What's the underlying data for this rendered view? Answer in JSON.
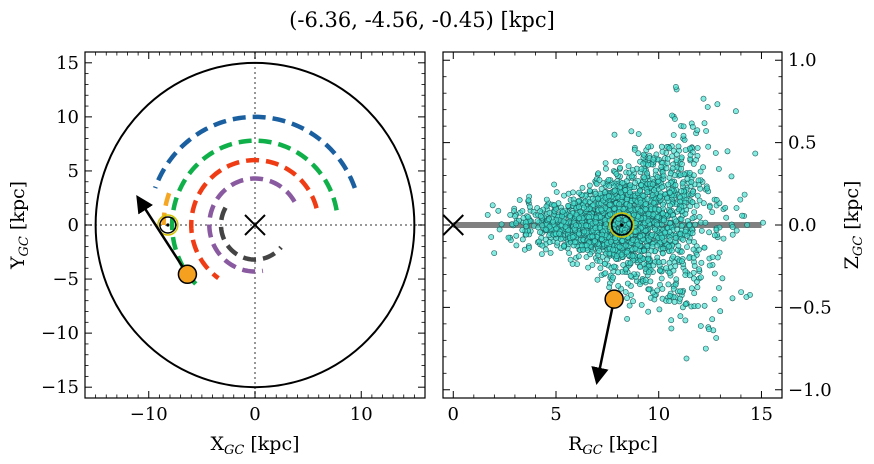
{
  "figure": {
    "title": "(-6.36, -4.56, -0.45) [kpc]",
    "left_xlabel": "X",
    "left_xlabel_sub": "GC",
    "left_xlabel_unit": " [kpc]",
    "left_ylabel": "Y",
    "left_ylabel_sub": "GC",
    "left_ylabel_unit": " [kpc]",
    "right_xlabel": "R",
    "right_xlabel_sub": "GC",
    "right_xlabel_unit": " [kpc]",
    "right_ylabel": "Z",
    "right_ylabel_sub": "GC",
    "right_ylabel_unit": " [kpc]"
  },
  "colors": {
    "arm_blue": "#1a5fa0",
    "arm_green": "#0fb04a",
    "arm_red": "#f03c14",
    "arm_purple": "#8a5aa0",
    "arm_gray": "#444444",
    "arm_orange": "#f5a623",
    "star": "#f5a01e",
    "cluster_fill": "#40e0d0",
    "sun_ring": "#d4c000",
    "disk_line": "#808080"
  },
  "chart_data": [
    {
      "type": "scatter",
      "panel": "left",
      "xlabel": "X_GC [kpc]",
      "ylabel": "Y_GC [kpc]",
      "xlim": [
        -16,
        16
      ],
      "ylim": [
        -16,
        16
      ],
      "xticks": [
        -10,
        0,
        10
      ],
      "yticks": [
        -15,
        -10,
        -5,
        0,
        5,
        10,
        15
      ],
      "xtick_labels": [
        "−10",
        "0",
        "10"
      ],
      "ytick_labels": [
        "−15",
        "−10",
        "−5",
        "0",
        "5",
        "10",
        "15"
      ],
      "boundary_circle_radius": 15,
      "galactic_center": [
        0,
        0
      ],
      "sun": [
        -8.2,
        0
      ],
      "star": [
        -6.36,
        -4.56
      ],
      "velocity_arrow_end": [
        -11,
        2.5
      ],
      "spiral_arms": [
        {
          "color_key": "arm_blue",
          "radius": 10,
          "start_deg": 20,
          "end_deg": 160
        },
        {
          "color_key": "arm_green",
          "radius": 7.8,
          "start_deg": 10,
          "end_deg": 225
        },
        {
          "color_key": "arm_red",
          "radius": 6.0,
          "start_deg": 15,
          "end_deg": 235
        },
        {
          "color_key": "arm_purple",
          "radius": 4.3,
          "start_deg": 30,
          "end_deg": 280
        },
        {
          "color_key": "arm_gray",
          "radius": 3.2,
          "start_deg": 150,
          "end_deg": 320
        },
        {
          "color_key": "arm_orange",
          "radius": 8.6,
          "start_deg": 160,
          "end_deg": 180
        }
      ]
    },
    {
      "type": "scatter",
      "panel": "right",
      "xlabel": "R_GC [kpc]",
      "ylabel": "Z_GC [kpc]",
      "xlim": [
        -0.5,
        16
      ],
      "ylim": [
        -1.05,
        1.05
      ],
      "xticks": [
        0,
        5,
        10,
        15
      ],
      "yticks": [
        -1.0,
        -0.5,
        0.0,
        0.5,
        1.0
      ],
      "xtick_labels": [
        "0",
        "5",
        "10",
        "15"
      ],
      "ytick_labels": [
        "−1.0",
        "−0.5",
        "0.0",
        "0.5",
        "1.0"
      ],
      "galactic_center": [
        0,
        0
      ],
      "disk_line": [
        0,
        15
      ],
      "sun": [
        8.2,
        0
      ],
      "star": [
        7.83,
        -0.45
      ],
      "velocity_arrow_end": [
        7,
        -0.95
      ],
      "cluster_count": 2200,
      "cluster_extent_r": [
        1.5,
        15.5
      ],
      "cluster_extent_z": [
        -1.0,
        1.0
      ]
    }
  ]
}
